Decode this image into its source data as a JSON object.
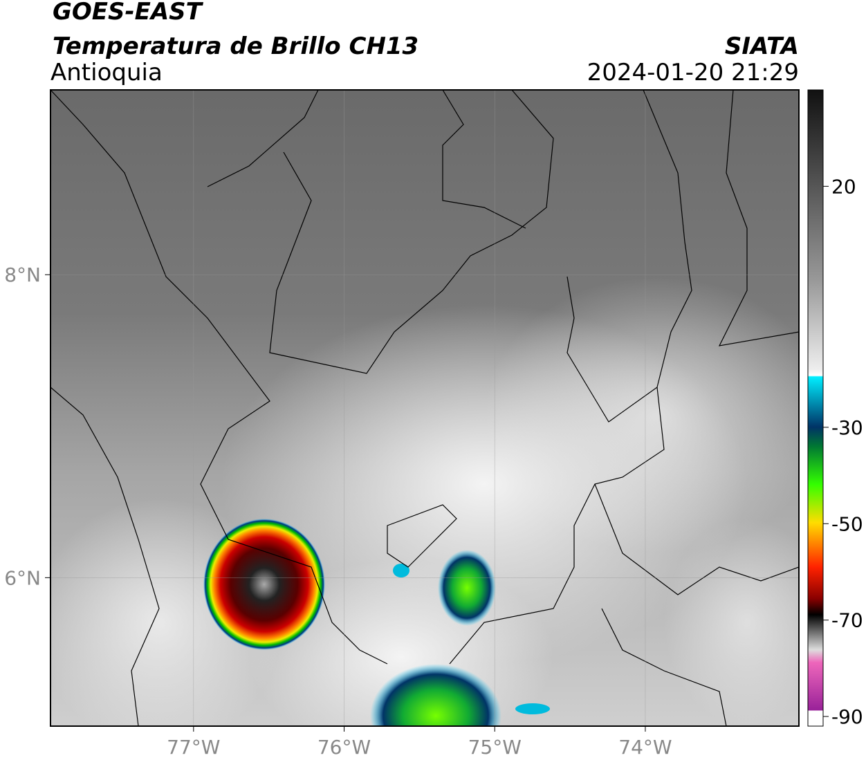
{
  "header": {
    "satellite": "GOES-EAST",
    "product": "Temperatura de Brillo CH13",
    "region": "Antioquia",
    "source": "SIATA",
    "datetime": "2024-01-20 21:29"
  },
  "map": {
    "xlim": [
      -77.95,
      -72.98
    ],
    "ylim": [
      5.02,
      9.22
    ],
    "xticks": [
      {
        "value": -77,
        "label": "77°W"
      },
      {
        "value": -76,
        "label": "76°W"
      },
      {
        "value": -75,
        "label": "75°W"
      },
      {
        "value": -74,
        "label": "74°W"
      }
    ],
    "yticks": [
      {
        "value": 8,
        "label": "8°N"
      },
      {
        "value": 6,
        "label": "6°N"
      }
    ],
    "grid": true
  },
  "colorbar": {
    "lim": [
      -92,
      40
    ],
    "ticks": [
      20,
      -30,
      -50,
      -70,
      -90
    ]
  }
}
